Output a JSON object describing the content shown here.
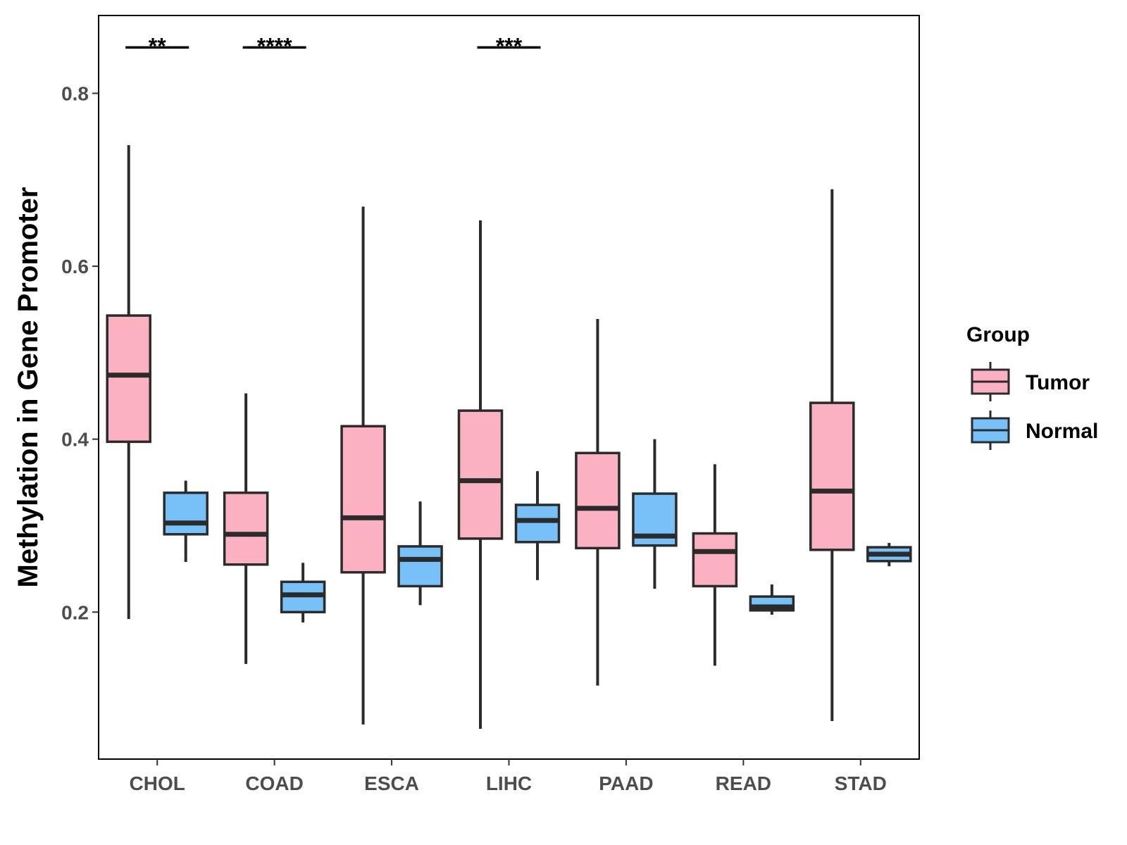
{
  "chart_data": {
    "type": "boxplot",
    "title": "",
    "xlabel": "",
    "ylabel": "Methylation in Gene Promoter",
    "ylim": [
      0.03,
      0.89
    ],
    "yticks": [
      0.2,
      0.4,
      0.6,
      0.8
    ],
    "ytick_labels": [
      "0.2",
      "0.4",
      "0.6",
      "0.8"
    ],
    "categories": [
      "CHOL",
      "COAD",
      "ESCA",
      "LIHC",
      "PAAD",
      "READ",
      "STAD"
    ],
    "legend": {
      "title": "Group",
      "position": "right",
      "entries": [
        {
          "name": "Tumor",
          "color": "#FBB1C2"
        },
        {
          "name": "Normal",
          "color": "#77C0F8"
        }
      ]
    },
    "series": [
      {
        "name": "Tumor",
        "color": "#FBB1C2",
        "boxes": [
          {
            "category": "CHOL",
            "min": 0.192,
            "q1": 0.397,
            "median": 0.474,
            "q3": 0.543,
            "max": 0.74
          },
          {
            "category": "COAD",
            "min": 0.14,
            "q1": 0.255,
            "median": 0.29,
            "q3": 0.338,
            "max": 0.453
          },
          {
            "category": "ESCA",
            "min": 0.07,
            "q1": 0.246,
            "median": 0.309,
            "q3": 0.415,
            "max": 0.669
          },
          {
            "category": "LIHC",
            "min": 0.065,
            "q1": 0.285,
            "median": 0.352,
            "q3": 0.433,
            "max": 0.653
          },
          {
            "category": "PAAD",
            "min": 0.115,
            "q1": 0.274,
            "median": 0.32,
            "q3": 0.384,
            "max": 0.539
          },
          {
            "category": "READ",
            "min": 0.138,
            "q1": 0.23,
            "median": 0.27,
            "q3": 0.291,
            "max": 0.371
          },
          {
            "category": "STAD",
            "min": 0.074,
            "q1": 0.272,
            "median": 0.34,
            "q3": 0.442,
            "max": 0.689
          }
        ]
      },
      {
        "name": "Normal",
        "color": "#77C0F8",
        "boxes": [
          {
            "category": "CHOL",
            "min": 0.258,
            "q1": 0.29,
            "median": 0.303,
            "q3": 0.338,
            "max": 0.352
          },
          {
            "category": "COAD",
            "min": 0.188,
            "q1": 0.2,
            "median": 0.22,
            "q3": 0.235,
            "max": 0.257
          },
          {
            "category": "ESCA",
            "min": 0.208,
            "q1": 0.23,
            "median": 0.261,
            "q3": 0.276,
            "max": 0.328
          },
          {
            "category": "LIHC",
            "min": 0.237,
            "q1": 0.281,
            "median": 0.306,
            "q3": 0.324,
            "max": 0.363
          },
          {
            "category": "PAAD",
            "min": 0.227,
            "q1": 0.277,
            "median": 0.288,
            "q3": 0.337,
            "max": 0.4
          },
          {
            "category": "READ",
            "min": 0.197,
            "q1": 0.202,
            "median": 0.206,
            "q3": 0.218,
            "max": 0.232
          },
          {
            "category": "STAD",
            "min": 0.253,
            "q1": 0.259,
            "median": 0.267,
            "q3": 0.275,
            "max": 0.28
          }
        ]
      }
    ],
    "annotations": [
      {
        "category": "CHOL",
        "text": "**",
        "y": 0.853
      },
      {
        "category": "COAD",
        "text": "****",
        "y": 0.853
      },
      {
        "category": "LIHC",
        "text": "***",
        "y": 0.853
      }
    ]
  }
}
